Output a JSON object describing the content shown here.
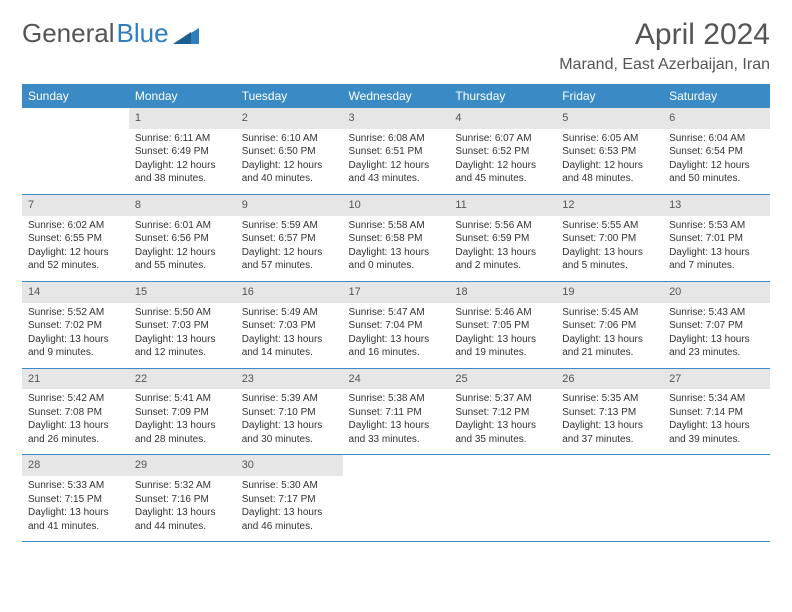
{
  "logo": {
    "text1": "General",
    "text2": "Blue"
  },
  "title": "April 2024",
  "location": "Marand, East Azerbaijan, Iran",
  "colors": {
    "header_bg": "#3a8ac6",
    "header_fg": "#ffffff",
    "daynum_bg": "#e6e6e6",
    "border": "#3a8ac6",
    "text": "#333333",
    "logo_gray": "#555555",
    "logo_blue": "#2f7fbf"
  },
  "weekdays": [
    "Sunday",
    "Monday",
    "Tuesday",
    "Wednesday",
    "Thursday",
    "Friday",
    "Saturday"
  ],
  "weeks": [
    [
      {
        "n": "",
        "lines": [
          "",
          "",
          "",
          ""
        ]
      },
      {
        "n": "1",
        "lines": [
          "Sunrise: 6:11 AM",
          "Sunset: 6:49 PM",
          "Daylight: 12 hours",
          "and 38 minutes."
        ]
      },
      {
        "n": "2",
        "lines": [
          "Sunrise: 6:10 AM",
          "Sunset: 6:50 PM",
          "Daylight: 12 hours",
          "and 40 minutes."
        ]
      },
      {
        "n": "3",
        "lines": [
          "Sunrise: 6:08 AM",
          "Sunset: 6:51 PM",
          "Daylight: 12 hours",
          "and 43 minutes."
        ]
      },
      {
        "n": "4",
        "lines": [
          "Sunrise: 6:07 AM",
          "Sunset: 6:52 PM",
          "Daylight: 12 hours",
          "and 45 minutes."
        ]
      },
      {
        "n": "5",
        "lines": [
          "Sunrise: 6:05 AM",
          "Sunset: 6:53 PM",
          "Daylight: 12 hours",
          "and 48 minutes."
        ]
      },
      {
        "n": "6",
        "lines": [
          "Sunrise: 6:04 AM",
          "Sunset: 6:54 PM",
          "Daylight: 12 hours",
          "and 50 minutes."
        ]
      }
    ],
    [
      {
        "n": "7",
        "lines": [
          "Sunrise: 6:02 AM",
          "Sunset: 6:55 PM",
          "Daylight: 12 hours",
          "and 52 minutes."
        ]
      },
      {
        "n": "8",
        "lines": [
          "Sunrise: 6:01 AM",
          "Sunset: 6:56 PM",
          "Daylight: 12 hours",
          "and 55 minutes."
        ]
      },
      {
        "n": "9",
        "lines": [
          "Sunrise: 5:59 AM",
          "Sunset: 6:57 PM",
          "Daylight: 12 hours",
          "and 57 minutes."
        ]
      },
      {
        "n": "10",
        "lines": [
          "Sunrise: 5:58 AM",
          "Sunset: 6:58 PM",
          "Daylight: 13 hours",
          "and 0 minutes."
        ]
      },
      {
        "n": "11",
        "lines": [
          "Sunrise: 5:56 AM",
          "Sunset: 6:59 PM",
          "Daylight: 13 hours",
          "and 2 minutes."
        ]
      },
      {
        "n": "12",
        "lines": [
          "Sunrise: 5:55 AM",
          "Sunset: 7:00 PM",
          "Daylight: 13 hours",
          "and 5 minutes."
        ]
      },
      {
        "n": "13",
        "lines": [
          "Sunrise: 5:53 AM",
          "Sunset: 7:01 PM",
          "Daylight: 13 hours",
          "and 7 minutes."
        ]
      }
    ],
    [
      {
        "n": "14",
        "lines": [
          "Sunrise: 5:52 AM",
          "Sunset: 7:02 PM",
          "Daylight: 13 hours",
          "and 9 minutes."
        ]
      },
      {
        "n": "15",
        "lines": [
          "Sunrise: 5:50 AM",
          "Sunset: 7:03 PM",
          "Daylight: 13 hours",
          "and 12 minutes."
        ]
      },
      {
        "n": "16",
        "lines": [
          "Sunrise: 5:49 AM",
          "Sunset: 7:03 PM",
          "Daylight: 13 hours",
          "and 14 minutes."
        ]
      },
      {
        "n": "17",
        "lines": [
          "Sunrise: 5:47 AM",
          "Sunset: 7:04 PM",
          "Daylight: 13 hours",
          "and 16 minutes."
        ]
      },
      {
        "n": "18",
        "lines": [
          "Sunrise: 5:46 AM",
          "Sunset: 7:05 PM",
          "Daylight: 13 hours",
          "and 19 minutes."
        ]
      },
      {
        "n": "19",
        "lines": [
          "Sunrise: 5:45 AM",
          "Sunset: 7:06 PM",
          "Daylight: 13 hours",
          "and 21 minutes."
        ]
      },
      {
        "n": "20",
        "lines": [
          "Sunrise: 5:43 AM",
          "Sunset: 7:07 PM",
          "Daylight: 13 hours",
          "and 23 minutes."
        ]
      }
    ],
    [
      {
        "n": "21",
        "lines": [
          "Sunrise: 5:42 AM",
          "Sunset: 7:08 PM",
          "Daylight: 13 hours",
          "and 26 minutes."
        ]
      },
      {
        "n": "22",
        "lines": [
          "Sunrise: 5:41 AM",
          "Sunset: 7:09 PM",
          "Daylight: 13 hours",
          "and 28 minutes."
        ]
      },
      {
        "n": "23",
        "lines": [
          "Sunrise: 5:39 AM",
          "Sunset: 7:10 PM",
          "Daylight: 13 hours",
          "and 30 minutes."
        ]
      },
      {
        "n": "24",
        "lines": [
          "Sunrise: 5:38 AM",
          "Sunset: 7:11 PM",
          "Daylight: 13 hours",
          "and 33 minutes."
        ]
      },
      {
        "n": "25",
        "lines": [
          "Sunrise: 5:37 AM",
          "Sunset: 7:12 PM",
          "Daylight: 13 hours",
          "and 35 minutes."
        ]
      },
      {
        "n": "26",
        "lines": [
          "Sunrise: 5:35 AM",
          "Sunset: 7:13 PM",
          "Daylight: 13 hours",
          "and 37 minutes."
        ]
      },
      {
        "n": "27",
        "lines": [
          "Sunrise: 5:34 AM",
          "Sunset: 7:14 PM",
          "Daylight: 13 hours",
          "and 39 minutes."
        ]
      }
    ],
    [
      {
        "n": "28",
        "lines": [
          "Sunrise: 5:33 AM",
          "Sunset: 7:15 PM",
          "Daylight: 13 hours",
          "and 41 minutes."
        ]
      },
      {
        "n": "29",
        "lines": [
          "Sunrise: 5:32 AM",
          "Sunset: 7:16 PM",
          "Daylight: 13 hours",
          "and 44 minutes."
        ]
      },
      {
        "n": "30",
        "lines": [
          "Sunrise: 5:30 AM",
          "Sunset: 7:17 PM",
          "Daylight: 13 hours",
          "and 46 minutes."
        ]
      },
      {
        "n": "",
        "lines": [
          "",
          "",
          "",
          ""
        ]
      },
      {
        "n": "",
        "lines": [
          "",
          "",
          "",
          ""
        ]
      },
      {
        "n": "",
        "lines": [
          "",
          "",
          "",
          ""
        ]
      },
      {
        "n": "",
        "lines": [
          "",
          "",
          "",
          ""
        ]
      }
    ]
  ]
}
